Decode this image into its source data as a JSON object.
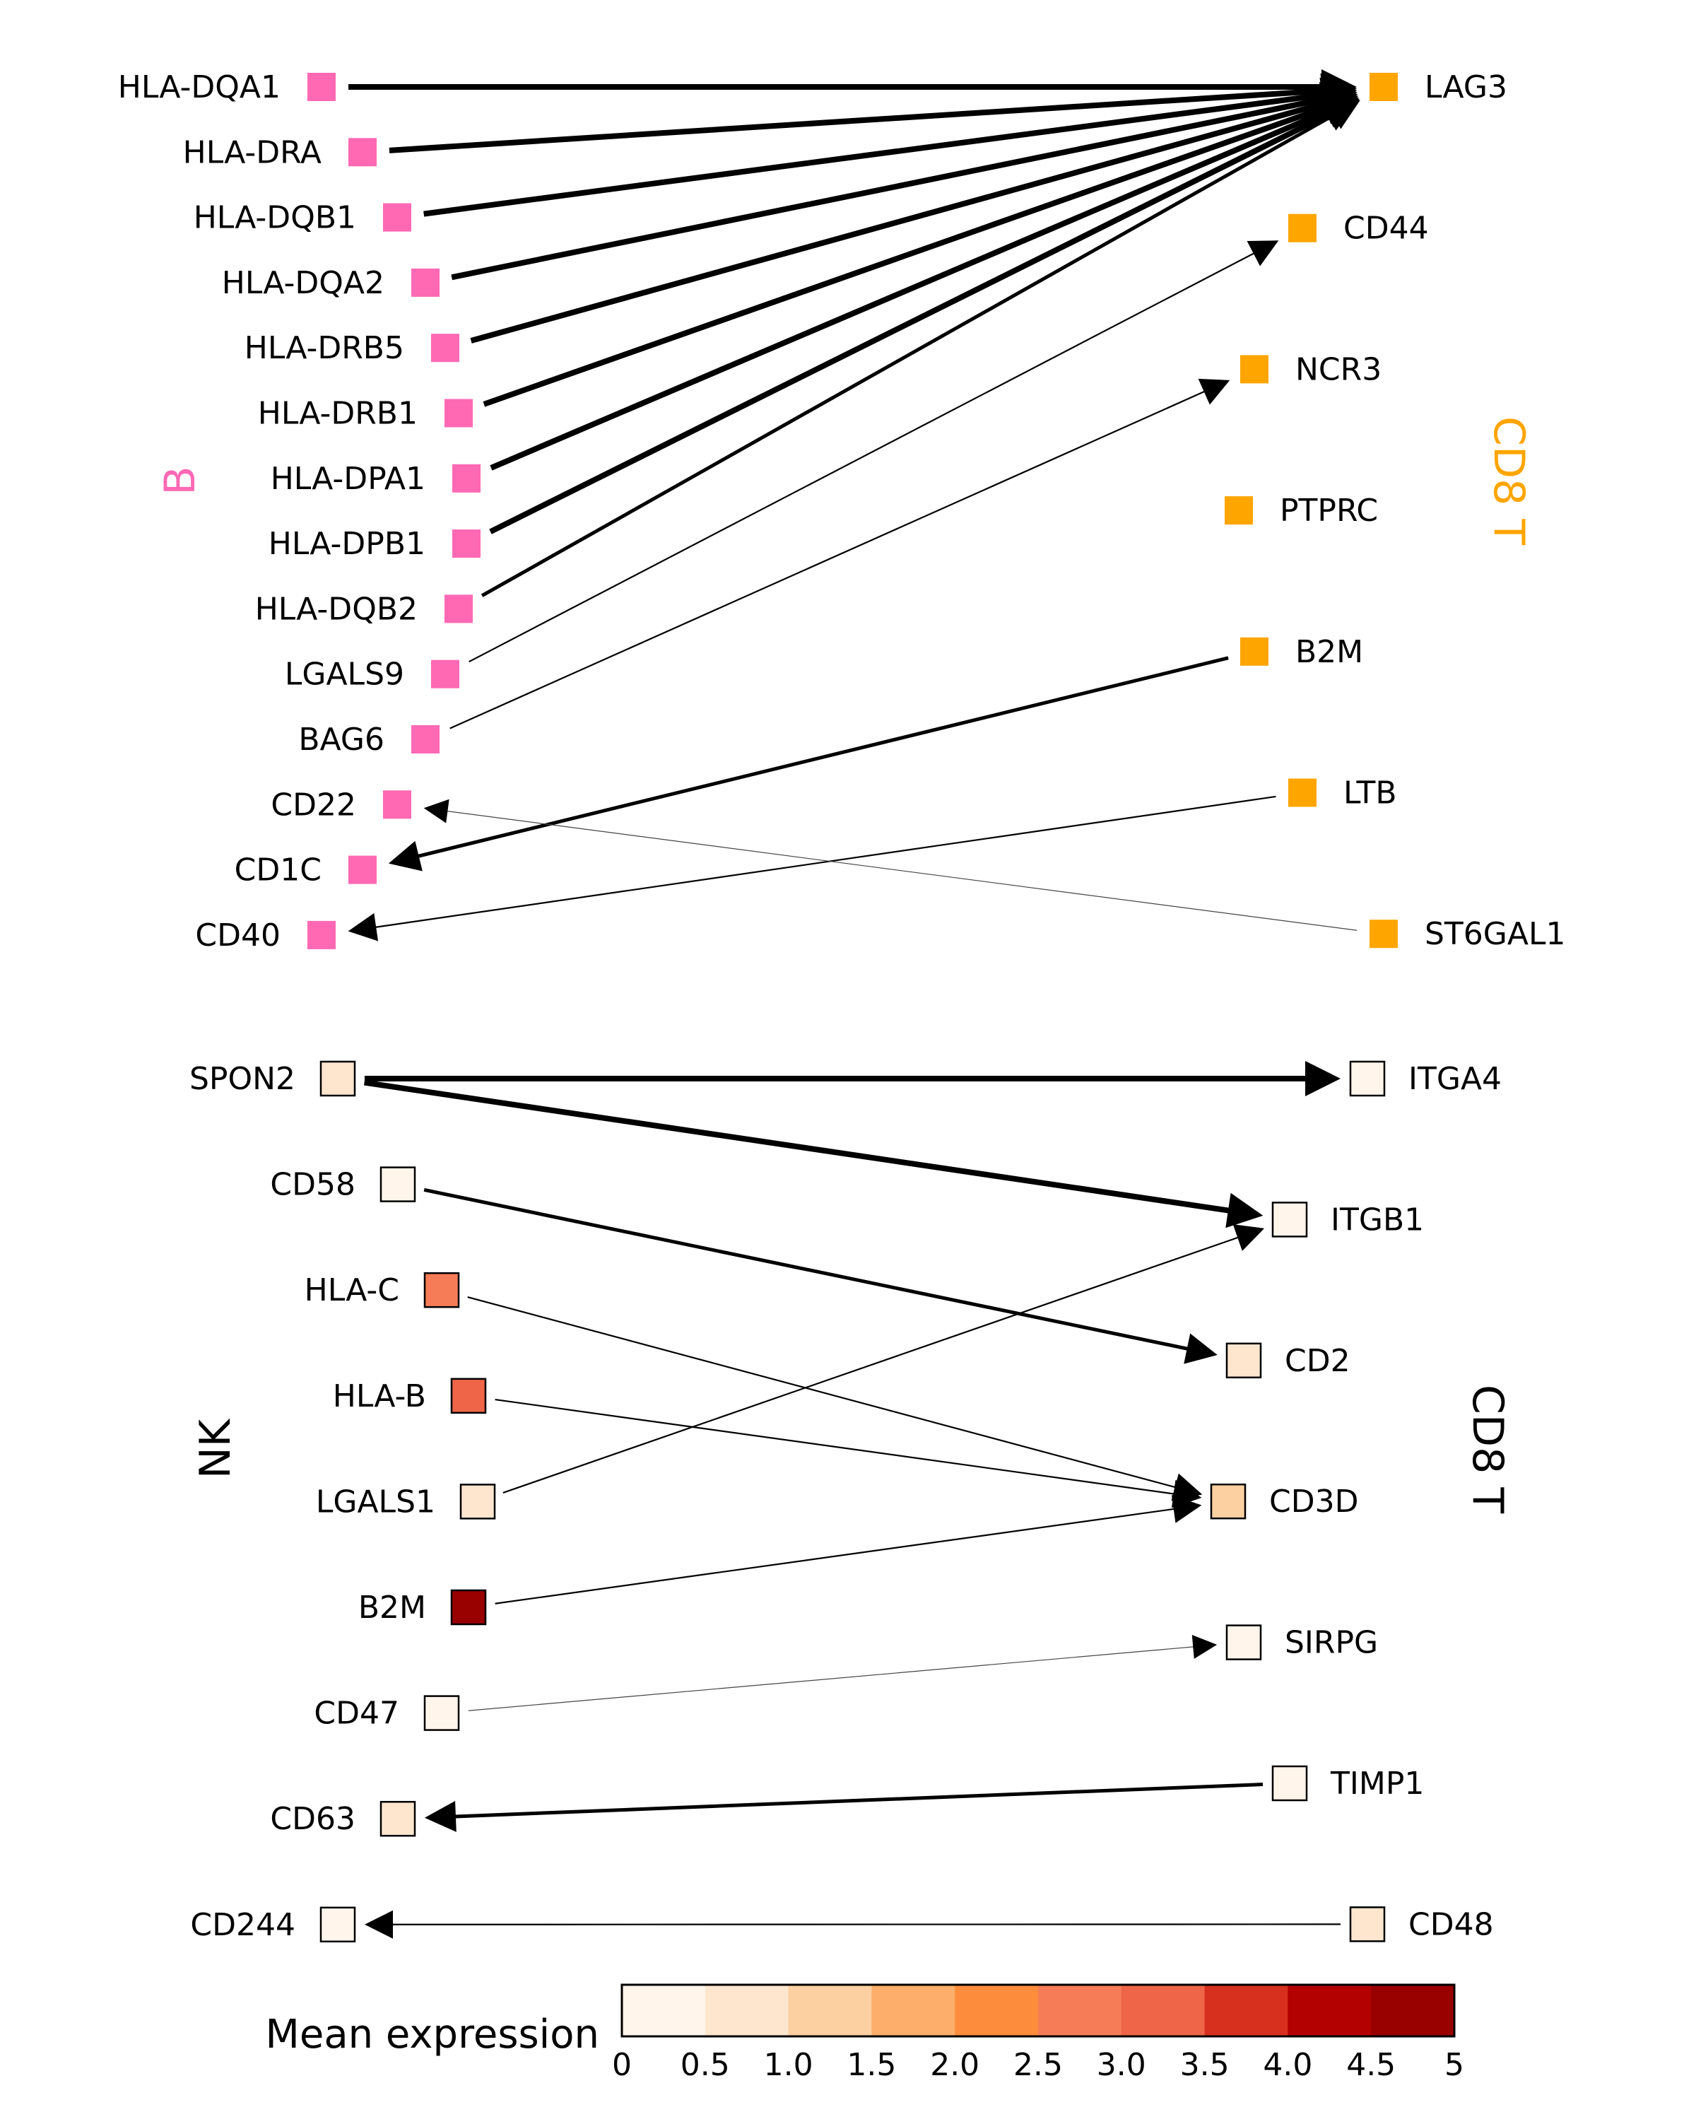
{
  "panel_b": {
    "sender_group": "B",
    "receiver_group": "CD8 T",
    "sender_color": "#ff69b4",
    "receiver_color": "#ffa500",
    "senders": [
      "HLA-DQA1",
      "HLA-DRA",
      "HLA-DQB1",
      "HLA-DQA2",
      "HLA-DRB5",
      "HLA-DRB1",
      "HLA-DPA1",
      "HLA-DPB1",
      "HLA-DQB2",
      "LGALS9",
      "BAG6",
      "CD22",
      "CD1C",
      "CD40"
    ],
    "receivers": [
      "LAG3",
      "CD44",
      "NCR3",
      "PTPRC",
      "B2M",
      "LTB",
      "ST6GAL1"
    ],
    "edges": [
      {
        "from": "HLA-DQA1",
        "to": "LAG3",
        "weight": "strong"
      },
      {
        "from": "HLA-DRA",
        "to": "LAG3",
        "weight": "strong"
      },
      {
        "from": "HLA-DQB1",
        "to": "LAG3",
        "weight": "strong"
      },
      {
        "from": "HLA-DQA2",
        "to": "LAG3",
        "weight": "strong"
      },
      {
        "from": "HLA-DRB5",
        "to": "LAG3",
        "weight": "strong"
      },
      {
        "from": "HLA-DRB1",
        "to": "LAG3",
        "weight": "strong"
      },
      {
        "from": "HLA-DPA1",
        "to": "LAG3",
        "weight": "strong"
      },
      {
        "from": "HLA-DPB1",
        "to": "LAG3",
        "weight": "strong"
      },
      {
        "from": "HLA-DQB2",
        "to": "LAG3",
        "weight": "medium"
      },
      {
        "from": "LGALS9",
        "to": "CD44",
        "weight": "weak"
      },
      {
        "from": "BAG6",
        "to": "NCR3",
        "weight": "weak"
      },
      {
        "from": "CD22",
        "to": "PTPRC",
        "weight": "weak",
        "reverse": true
      },
      {
        "from": "B2M",
        "to": "CD1C",
        "weight": "medium",
        "reverse": true
      },
      {
        "from": "LTB",
        "to": "CD40",
        "weight": "weak",
        "reverse": true
      },
      {
        "from": "ST6GAL1",
        "to": "CD22",
        "weight": "faint",
        "reverse": true
      }
    ]
  },
  "panel_nk": {
    "sender_group": "NK",
    "receiver_group": "CD8 T",
    "senders": [
      {
        "name": "SPON2",
        "expr": 0.6
      },
      {
        "name": "CD58",
        "expr": 0.3
      },
      {
        "name": "HLA-C",
        "expr": 2.8
      },
      {
        "name": "HLA-B",
        "expr": 3.2
      },
      {
        "name": "LGALS1",
        "expr": 0.7
      },
      {
        "name": "B2M",
        "expr": 4.8
      },
      {
        "name": "CD47",
        "expr": 0.3
      },
      {
        "name": "CD63",
        "expr": 0.8
      },
      {
        "name": "CD244",
        "expr": 0.3
      }
    ],
    "receivers": [
      {
        "name": "ITGA4",
        "expr": 0.2
      },
      {
        "name": "ITGB1",
        "expr": 0.3
      },
      {
        "name": "CD2",
        "expr": 0.6
      },
      {
        "name": "CD3D",
        "expr": 1.1
      },
      {
        "name": "SIRPG",
        "expr": 0.3
      },
      {
        "name": "TIMP1",
        "expr": 0.2
      },
      {
        "name": "CD48",
        "expr": 0.7
      }
    ],
    "edges": [
      {
        "from": "SPON2",
        "to": "ITGA4",
        "weight": "strong"
      },
      {
        "from": "SPON2",
        "to": "ITGB1",
        "weight": "strong"
      },
      {
        "from": "CD58",
        "to": "CD2",
        "weight": "medium"
      },
      {
        "from": "HLA-C",
        "to": "CD3D",
        "weight": "weak"
      },
      {
        "from": "HLA-B",
        "to": "CD3D",
        "weight": "weak"
      },
      {
        "from": "LGALS1",
        "to": "ITGB1",
        "weight": "weak"
      },
      {
        "from": "B2M",
        "to": "CD3D",
        "weight": "weak"
      },
      {
        "from": "CD47",
        "to": "SIRPG",
        "weight": "faint"
      },
      {
        "from": "TIMP1",
        "to": "CD63",
        "weight": "medium",
        "reverse": true
      },
      {
        "from": "CD48",
        "to": "CD244",
        "weight": "weak",
        "reverse": true
      }
    ]
  },
  "colorbar": {
    "label": "Mean expression",
    "ticks": [
      "0",
      "0.5",
      "1.0",
      "1.5",
      "2.0",
      "2.5",
      "3.0",
      "3.5",
      "4.0",
      "4.5",
      "5"
    ],
    "colors": [
      "#fff5eb",
      "#fee6ce",
      "#fdd0a2",
      "#fdae6b",
      "#fd8d3c",
      "#f57c56",
      "#ef6548",
      "#d7301f",
      "#b30000",
      "#990000"
    ]
  }
}
